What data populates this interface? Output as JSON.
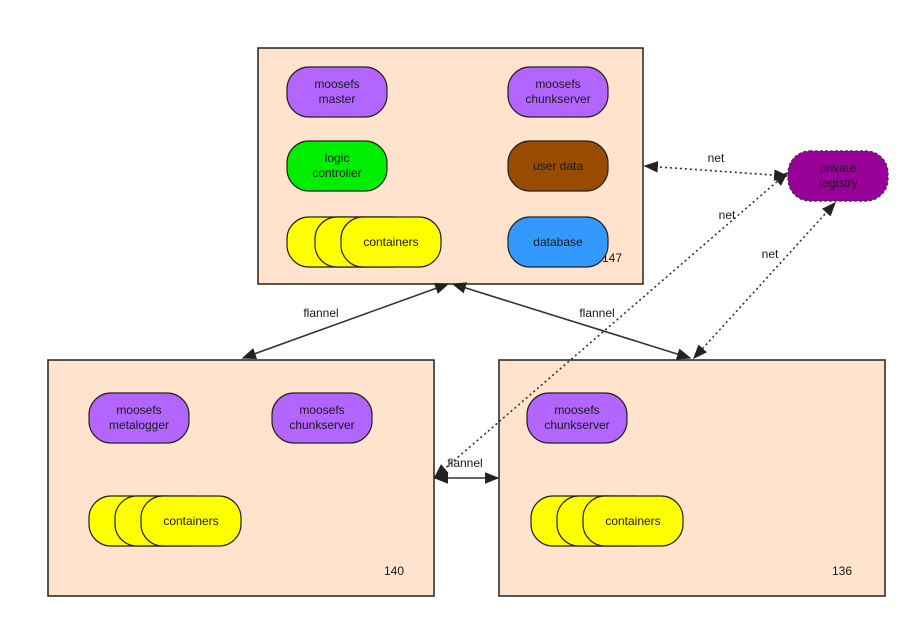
{
  "colors": {
    "host_fill": "#ffe3cc",
    "moosefs": "#b266ff",
    "logic": "#00ee00",
    "userdata": "#994c00",
    "database": "#3399ff",
    "containers": "#ffff00",
    "registry": "#990099"
  },
  "hosts": {
    "h147": {
      "label": "147"
    },
    "h140": {
      "label": "140"
    },
    "h136": {
      "label": "136"
    }
  },
  "nodes": {
    "master": {
      "line1": "moosefs",
      "line2": "master"
    },
    "chunk147": {
      "line1": "moosefs",
      "line2": "chunkserver"
    },
    "logic": {
      "line1": "logic",
      "line2": "controller"
    },
    "userdata": {
      "line1": "user data"
    },
    "containers147": {
      "line1": "containers"
    },
    "database": {
      "line1": "database"
    },
    "metalogger": {
      "line1": "moosefs",
      "line2": "metalogger"
    },
    "chunk140": {
      "line1": "moosefs",
      "line2": "chunkserver"
    },
    "containers140": {
      "line1": "containers"
    },
    "chunk136": {
      "line1": "moosefs",
      "line2": "chunkserver"
    },
    "containers136": {
      "line1": "containers"
    },
    "registry": {
      "line1": "private",
      "line2": "registry"
    }
  },
  "edges": {
    "e147_140": {
      "label": "flannel"
    },
    "e147_136": {
      "label": "flannel"
    },
    "e140_136": {
      "label": "flannel"
    },
    "e147_reg": {
      "label": "net"
    },
    "e140_reg": {
      "label": "net"
    },
    "e136_reg": {
      "label": "net"
    }
  }
}
